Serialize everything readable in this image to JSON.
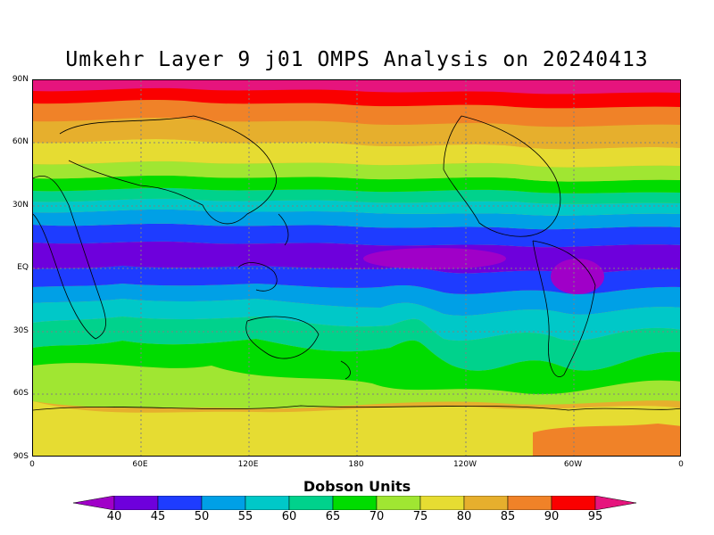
{
  "title": "Umkehr Layer 9 j01 OMPS Analysis on 20240413",
  "lat_labels": [
    "90N",
    "60N",
    "30N",
    "EQ",
    "30S",
    "60S",
    "90S"
  ],
  "lon_labels": [
    "0",
    "60E",
    "120E",
    "180",
    "120W",
    "60W",
    "0"
  ],
  "colorbar": {
    "title": "Dobson Units",
    "ticks": [
      "40",
      "45",
      "50",
      "55",
      "60",
      "65",
      "70",
      "75",
      "80",
      "85",
      "90",
      "95"
    ],
    "colors": [
      "#a000c8",
      "#6e00dc",
      "#1e3cff",
      "#00a0e6",
      "#00c8c8",
      "#00d28c",
      "#00dc00",
      "#a0e632",
      "#e6dc32",
      "#e6af2d",
      "#f08228",
      "#fa0000",
      "#e6147d"
    ]
  }
}
